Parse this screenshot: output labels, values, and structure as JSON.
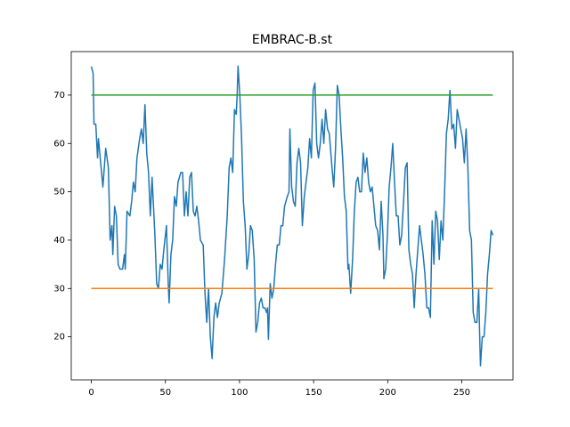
{
  "chart_data": {
    "type": "line",
    "title": "EMBRAC-B.st",
    "xlim": [
      -13.55,
      284.55
    ],
    "xticks": [
      0,
      50,
      100,
      150,
      200,
      250
    ],
    "ylim": [
      11.1,
      79.0
    ],
    "yticks": [
      20,
      30,
      40,
      50,
      60,
      70
    ],
    "series": [
      {
        "color": "#1f77b4",
        "x": [
          0,
          1.2,
          1.8,
          3.0,
          4.2,
          4.8,
          6.6,
          7.8,
          9.7,
          11.5,
          12.7,
          13.9,
          14.5,
          15.7,
          16.9,
          18.1,
          19.3,
          21.1,
          22.3,
          22.9,
          24.1,
          26.0,
          27.2,
          28.4,
          29.6,
          30.8,
          32.6,
          33.8,
          35.0,
          36.2,
          37.4,
          38.6,
          39.8,
          41.0,
          42.9,
          44.1,
          45.3,
          46.5,
          47.7,
          48.9,
          50.7,
          51.9,
          52.5,
          53.7,
          54.9,
          56.1,
          57.3,
          58.5,
          60.4,
          61.6,
          62.8,
          64.0,
          65.2,
          66.4,
          67.6,
          68.8,
          70.0,
          71.2,
          72.4,
          73.6,
          75.5,
          76.7,
          77.9,
          79.1,
          80.3,
          81.5,
          82.7,
          83.9,
          85.1,
          86.3,
          88.1,
          89.9,
          91.7,
          93.0,
          94.2,
          95.4,
          96.6,
          97.8,
          98.4,
          99.0,
          100.2,
          101.4,
          102.6,
          103.8,
          105.0,
          106.2,
          107.4,
          108.6,
          109.9,
          111.1,
          112.3,
          113.5,
          114.7,
          115.9,
          117.1,
          118.3,
          118.9,
          119.5,
          120.7,
          121.9,
          123.1,
          124.3,
          125.5,
          126.8,
          128.0,
          129.2,
          130.4,
          132.2,
          133.4,
          134.0,
          135.2,
          136.4,
          137.6,
          138.8,
          140.0,
          141.2,
          142.4,
          143.7,
          144.9,
          146.1,
          147.3,
          148.5,
          149.7,
          150.9,
          152.1,
          153.3,
          154.5,
          155.7,
          156.9,
          158.1,
          159.4,
          160.6,
          162.4,
          163.6,
          164.8,
          166.0,
          167.2,
          168.4,
          169.6,
          170.8,
          172.0,
          173.2,
          173.8,
          175.0,
          176.3,
          177.5,
          178.7,
          179.9,
          181.1,
          182.3,
          183.5,
          184.7,
          185.9,
          187.1,
          188.3,
          189.5,
          190.7,
          191.9,
          193.2,
          194.4,
          195.6,
          196.8,
          197.4,
          198.6,
          199.8,
          201.0,
          202.2,
          203.4,
          204.6,
          205.8,
          207.0,
          208.2,
          209.4,
          210.7,
          211.9,
          213.1,
          214.3,
          215.5,
          216.7,
          217.9,
          219.1,
          220.3,
          221.5,
          222.7,
          223.9,
          225.1,
          226.4,
          227.6,
          228.8,
          230.0,
          231.2,
          232.4,
          233.6,
          234.8,
          236.0,
          237.2,
          238.4,
          239.6,
          240.8,
          242.0,
          243.3,
          244.5,
          245.7,
          246.9,
          248.1,
          249.3,
          250.5,
          251.7,
          252.9,
          254.1,
          255.3,
          256.5,
          257.7,
          258.9,
          260.2,
          261.4,
          262.0,
          262.6,
          263.8,
          265.0,
          266.2,
          267.4,
          268.6,
          269.8,
          271.0
        ],
        "values": [
          75.9,
          74.5,
          64,
          64,
          57,
          61,
          55,
          51,
          59,
          55,
          40,
          43,
          37,
          47,
          45,
          35,
          34,
          34,
          37,
          34,
          46,
          45,
          48,
          52,
          50,
          57,
          61,
          63,
          60,
          68,
          58,
          54,
          45,
          53,
          41,
          31,
          30,
          35,
          34,
          38,
          43,
          31,
          27,
          37,
          40,
          49,
          47,
          52,
          54,
          54,
          45,
          50,
          45,
          53,
          54,
          46,
          45,
          47,
          44,
          40,
          39,
          29,
          23,
          30,
          20,
          15.5,
          24,
          27,
          24,
          27,
          29,
          36,
          45,
          55,
          57,
          54,
          67,
          66,
          70,
          76,
          70,
          61,
          48,
          43,
          34,
          37,
          43,
          42,
          36,
          21,
          23,
          27,
          28,
          26,
          26,
          25,
          26,
          19.5,
          31,
          28,
          30,
          35,
          39,
          39,
          43,
          43,
          47,
          49,
          50,
          63,
          51,
          48,
          47,
          56,
          59,
          56,
          43,
          49,
          52,
          55,
          61,
          57,
          71,
          72.5,
          60,
          57,
          60,
          65,
          60,
          67,
          63,
          62,
          55,
          51,
          59,
          72,
          70,
          63,
          57,
          49,
          46,
          34,
          35,
          29,
          36,
          46,
          52,
          53,
          50,
          50,
          58,
          54,
          57,
          52,
          50,
          51,
          47,
          43,
          42,
          38,
          48,
          41,
          32,
          34,
          41,
          51,
          55,
          60,
          52,
          45,
          45,
          39,
          41,
          48,
          55,
          56,
          38,
          35,
          33,
          26,
          33,
          38,
          43,
          40,
          37,
          33,
          26,
          26,
          24,
          44,
          35,
          46,
          44,
          36,
          44,
          40,
          50,
          62,
          65,
          71,
          63,
          64,
          59,
          67,
          65,
          63,
          61,
          56,
          63,
          55,
          42,
          40,
          25,
          23,
          23,
          30,
          21,
          14,
          20,
          20,
          25,
          33,
          37,
          42,
          41
        ]
      },
      {
        "color": "#2ca02c",
        "x": [
          0,
          271
        ],
        "values": [
          70,
          70
        ]
      },
      {
        "color": "#ff7f0e",
        "x": [
          0,
          271
        ],
        "values": [
          30,
          30
        ]
      }
    ]
  }
}
